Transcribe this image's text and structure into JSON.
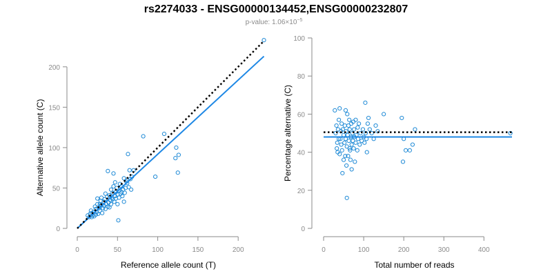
{
  "title": "rs2274033 - ENSG00000134452,ENSG00000232807",
  "subtitle": {
    "prefix": "p-value: 1.06×10",
    "exponent": "−5"
  },
  "colors": {
    "points": "#1f8ad6",
    "fit": "#1e88e5",
    "reference": "#000000",
    "axis": "#8a8a8a"
  },
  "chart_data": [
    {
      "type": "scatter",
      "xlabel": "Reference allele count (T)",
      "ylabel": "Alternative allele count (C)",
      "xlim": [
        0,
        235
      ],
      "ylim": [
        0,
        240
      ],
      "xticks": [
        0,
        50,
        100,
        150,
        200
      ],
      "yticks": [
        0,
        50,
        100,
        150,
        200
      ],
      "fit_line": {
        "label": "fit",
        "from": [
          0,
          0
        ],
        "to": [
          232,
          213
        ]
      },
      "reference_line": {
        "label": "reference",
        "from": [
          0,
          0
        ],
        "to": [
          232,
          232
        ]
      },
      "points": [
        [
          13,
          16
        ],
        [
          15,
          14
        ],
        [
          16,
          18
        ],
        [
          17,
          22
        ],
        [
          18,
          14
        ],
        [
          18,
          19
        ],
        [
          19,
          16
        ],
        [
          20,
          20
        ],
        [
          21,
          15
        ],
        [
          22,
          27
        ],
        [
          23,
          24
        ],
        [
          23,
          17
        ],
        [
          24,
          20
        ],
        [
          25,
          30
        ],
        [
          25,
          37
        ],
        [
          26,
          18
        ],
        [
          27,
          25
        ],
        [
          28,
          30
        ],
        [
          28,
          22
        ],
        [
          29,
          34
        ],
        [
          30,
          29
        ],
        [
          30,
          38
        ],
        [
          31,
          19
        ],
        [
          32,
          25
        ],
        [
          33,
          33
        ],
        [
          33,
          28
        ],
        [
          34,
          36
        ],
        [
          35,
          43
        ],
        [
          35,
          24
        ],
        [
          36,
          30
        ],
        [
          37,
          39
        ],
        [
          38,
          27
        ],
        [
          38,
          71
        ],
        [
          39,
          32
        ],
        [
          40,
          41
        ],
        [
          40,
          26
        ],
        [
          41,
          35
        ],
        [
          42,
          48
        ],
        [
          42,
          30
        ],
        [
          43,
          38
        ],
        [
          44,
          36
        ],
        [
          44,
          44
        ],
        [
          45,
          52
        ],
        [
          45,
          68
        ],
        [
          46,
          33
        ],
        [
          47,
          40
        ],
        [
          47,
          57
        ],
        [
          48,
          45
        ],
        [
          48,
          37
        ],
        [
          49,
          50
        ],
        [
          50,
          42
        ],
        [
          50,
          30
        ],
        [
          51,
          10
        ],
        [
          52,
          47
        ],
        [
          52,
          38
        ],
        [
          53,
          55
        ],
        [
          54,
          43
        ],
        [
          55,
          45
        ],
        [
          55,
          52
        ],
        [
          56,
          40
        ],
        [
          57,
          48
        ],
        [
          58,
          62
        ],
        [
          59,
          44
        ],
        [
          60,
          50
        ],
        [
          61,
          58
        ],
        [
          62,
          56
        ],
        [
          63,
          92
        ],
        [
          64,
          51
        ],
        [
          65,
          72
        ],
        [
          66,
          61
        ],
        [
          67,
          48
        ],
        [
          68,
          64
        ],
        [
          70,
          72
        ],
        [
          62,
          60
        ],
        [
          58,
          33
        ],
        [
          82,
          114
        ],
        [
          97,
          64
        ],
        [
          108,
          117
        ],
        [
          122,
          87
        ],
        [
          123,
          100
        ],
        [
          125,
          69
        ],
        [
          126,
          91
        ],
        [
          232,
          233
        ]
      ]
    },
    {
      "type": "scatter",
      "xlabel": "Total number of reads",
      "ylabel": "Percentage alternative (C)",
      "xlim": [
        0,
        470
      ],
      "ylim": [
        0,
        100
      ],
      "xticks": [
        0,
        100,
        200,
        300,
        400
      ],
      "yticks": [
        0,
        20,
        40,
        60,
        80,
        100
      ],
      "fit_line": {
        "label": "fit",
        "value": 48
      },
      "reference_line": {
        "label": "reference",
        "value": 50.5
      },
      "points": [
        [
          28,
          62
        ],
        [
          30,
          50
        ],
        [
          32,
          54
        ],
        [
          33,
          42
        ],
        [
          34,
          45
        ],
        [
          35,
          40
        ],
        [
          36,
          52
        ],
        [
          38,
          57
        ],
        [
          38,
          47
        ],
        [
          40,
          63
        ],
        [
          40,
          39
        ],
        [
          42,
          47
        ],
        [
          43,
          51
        ],
        [
          44,
          44
        ],
        [
          45,
          55
        ],
        [
          46,
          41
        ],
        [
          47,
          29
        ],
        [
          48,
          52
        ],
        [
          50,
          36
        ],
        [
          50,
          49
        ],
        [
          52,
          45
        ],
        [
          53,
          54
        ],
        [
          54,
          38
        ],
        [
          55,
          62
        ],
        [
          55,
          47
        ],
        [
          56,
          51
        ],
        [
          57,
          33
        ],
        [
          58,
          43
        ],
        [
          58,
          16
        ],
        [
          59,
          60
        ],
        [
          60,
          49
        ],
        [
          61,
          38
        ],
        [
          62,
          54
        ],
        [
          63,
          46
        ],
        [
          64,
          57
        ],
        [
          65,
          42
        ],
        [
          65,
          52
        ],
        [
          66,
          41
        ],
        [
          67,
          36
        ],
        [
          68,
          48
        ],
        [
          69,
          55
        ],
        [
          70,
          44
        ],
        [
          70,
          31
        ],
        [
          72,
          50
        ],
        [
          73,
          46
        ],
        [
          74,
          56
        ],
        [
          75,
          42
        ],
        [
          76,
          52
        ],
        [
          77,
          48
        ],
        [
          78,
          35
        ],
        [
          80,
          45
        ],
        [
          80,
          57
        ],
        [
          82,
          49
        ],
        [
          84,
          41
        ],
        [
          85,
          53
        ],
        [
          86,
          47
        ],
        [
          88,
          55
        ],
        [
          90,
          44
        ],
        [
          92,
          50
        ],
        [
          95,
          46
        ],
        [
          98,
          52
        ],
        [
          100,
          48
        ],
        [
          102,
          45
        ],
        [
          104,
          66
        ],
        [
          105,
          50
        ],
        [
          107,
          47
        ],
        [
          108,
          40
        ],
        [
          110,
          55
        ],
        [
          112,
          58
        ],
        [
          115,
          52
        ],
        [
          120,
          50
        ],
        [
          125,
          47
        ],
        [
          130,
          54
        ],
        [
          135,
          51
        ],
        [
          150,
          60
        ],
        [
          195,
          58
        ],
        [
          198,
          35
        ],
        [
          200,
          47
        ],
        [
          205,
          41
        ],
        [
          215,
          41
        ],
        [
          222,
          44
        ],
        [
          228,
          52
        ],
        [
          466,
          50
        ]
      ]
    }
  ]
}
